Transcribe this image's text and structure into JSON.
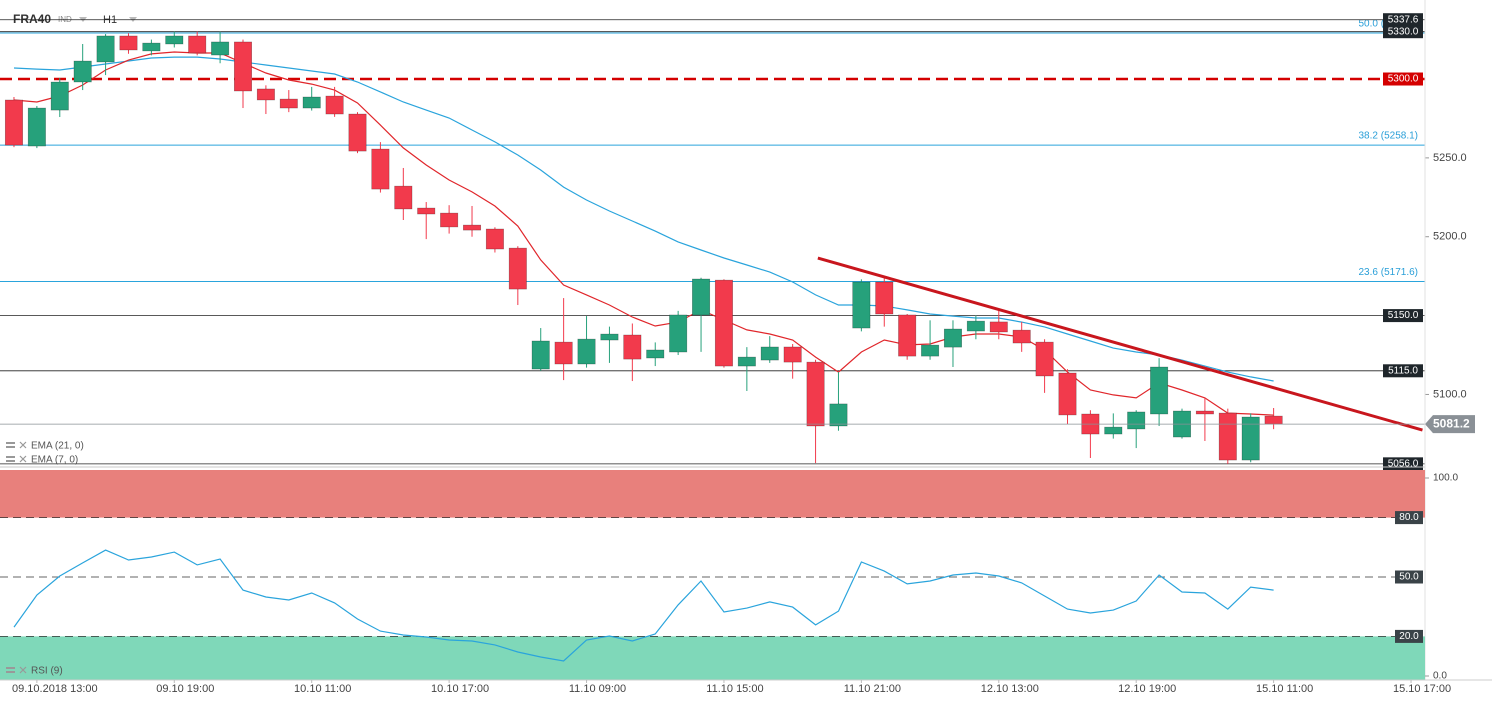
{
  "chart_data": {
    "type": "candlestick",
    "title": "FRA40",
    "instrument_type": "IND",
    "timeframe": "H1",
    "x": [
      0,
      1,
      2,
      3,
      4,
      5,
      6,
      7,
      8,
      9,
      10,
      11,
      12,
      13,
      14,
      15,
      16,
      17,
      18,
      19,
      20,
      21,
      22,
      23,
      24,
      25,
      26,
      27,
      28,
      29,
      30,
      31,
      32,
      33,
      34,
      35,
      36,
      37,
      38,
      39,
      40,
      41,
      42,
      43,
      44,
      45,
      46,
      47,
      48,
      49,
      50,
      51,
      52,
      53,
      54,
      55
    ],
    "open": [
      5286.7,
      5257.5,
      5280.3,
      5298.1,
      5310.8,
      5327.3,
      5317.8,
      5322.2,
      5327.3,
      5315.2,
      5323.5,
      5293.7,
      5287.3,
      5281.6,
      5289.2,
      5277.8,
      5255.6,
      5232.1,
      5218.2,
      5215.0,
      5207.4,
      5204.9,
      5192.8,
      5116.1,
      5133.2,
      5119.3,
      5134.5,
      5137.7,
      5123.1,
      5126.9,
      5150.4,
      5172.5,
      5118.0,
      5121.8,
      5130.1,
      5120.5,
      5080.0,
      5142.1,
      5171.3,
      5150.4,
      5124.3,
      5130.0,
      5140.2,
      5146.0,
      5140.8,
      5133.2,
      5113.6,
      5087.6,
      5074.9,
      5078.1,
      5087.6,
      5073.0,
      5089.5,
      5088.2,
      5058.4,
      5086.3
    ],
    "high": [
      5288.6,
      5282.9,
      5300.6,
      5322.2,
      5328.5,
      5329.0,
      5325.0,
      5330.0,
      5330.0,
      5330.0,
      5325.0,
      5296.0,
      5293.0,
      5295.0,
      5295.0,
      5279.0,
      5260.0,
      5243.6,
      5222.0,
      5220.0,
      5219.5,
      5206.0,
      5194.0,
      5142.1,
      5161.1,
      5149.7,
      5143.0,
      5145.0,
      5133.0,
      5153.0,
      5174.0,
      5173.0,
      5130.0,
      5137.0,
      5132.0,
      5122.0,
      5114.2,
      5173.0,
      5174.0,
      5151.0,
      5147.0,
      5147.0,
      5150.0,
      5153.0,
      5146.0,
      5135.0,
      5116.0,
      5090.0,
      5088.0,
      5090.0,
      5123.0,
      5091.0,
      5097.7,
      5091.0,
      5088.0,
      5091.4
    ],
    "low": [
      5256.8,
      5256.2,
      5275.9,
      5293.0,
      5302.5,
      5316.0,
      5315.0,
      5320.0,
      5315.0,
      5310.0,
      5281.6,
      5277.8,
      5279.0,
      5280.0,
      5276.0,
      5253.0,
      5228.0,
      5210.6,
      5198.5,
      5202.0,
      5200.0,
      5190.0,
      5156.7,
      5115.0,
      5109.1,
      5117.0,
      5120.0,
      5108.5,
      5118.0,
      5125.0,
      5127.0,
      5117.0,
      5102.2,
      5120.0,
      5110.0,
      5056.5,
      5077.0,
      5140.0,
      5143.0,
      5122.0,
      5122.0,
      5117.4,
      5135.0,
      5135.0,
      5127.0,
      5101.0,
      5081.0,
      5059.7,
      5072.0,
      5066.0,
      5080.0,
      5072.0,
      5070.5,
      5056.0,
      5057.0,
      5078.0
    ],
    "close": [
      5258.1,
      5281.6,
      5298.1,
      5311.4,
      5327.3,
      5318.4,
      5322.8,
      5327.3,
      5316.5,
      5323.5,
      5292.4,
      5286.7,
      5281.6,
      5288.6,
      5277.8,
      5254.3,
      5230.2,
      5217.6,
      5214.4,
      5206.2,
      5204.2,
      5192.2,
      5166.8,
      5133.9,
      5119.3,
      5135.1,
      5138.3,
      5122.4,
      5128.2,
      5150.4,
      5173.2,
      5118.0,
      5123.7,
      5130.1,
      5120.5,
      5080.0,
      5094.0,
      5171.3,
      5151.0,
      5124.3,
      5131.3,
      5141.5,
      5146.5,
      5139.6,
      5132.6,
      5111.7,
      5087.0,
      5074.9,
      5079.3,
      5088.9,
      5117.4,
      5089.5,
      5087.6,
      5058.4,
      5085.7,
      5081.2
    ],
    "up_color": "#26a17b",
    "down_color": "#f23a4c",
    "series": [
      {
        "name": "EMA (21, 0)",
        "color": "#2aa4dc",
        "values": [
          5307.0,
          5306.3,
          5305.7,
          5307.6,
          5309.5,
          5311.4,
          5313.3,
          5313.9,
          5313.9,
          5312.7,
          5310.8,
          5308.9,
          5307.0,
          5305.1,
          5303.2,
          5298.1,
          5291.8,
          5285.4,
          5280.3,
          5275.3,
          5267.7,
          5260.1,
          5251.8,
          5242.3,
          5231.5,
          5223.3,
          5216.3,
          5210.0,
          5203.6,
          5196.7,
          5191.6,
          5186.5,
          5182.1,
          5177.6,
          5171.3,
          5163.1,
          5156.7,
          5156.7,
          5156.1,
          5153.6,
          5151.0,
          5149.7,
          5148.5,
          5148.5,
          5145.9,
          5142.8,
          5138.3,
          5133.9,
          5129.4,
          5126.9,
          5125.0,
          5121.8,
          5118.0,
          5114.2,
          5111.1,
          5108.5
        ]
      },
      {
        "name": "EMA (7, 0)",
        "color": "#e0262b",
        "values": [
          5286.7,
          5285.4,
          5289.2,
          5296.2,
          5305.7,
          5312.0,
          5315.9,
          5317.1,
          5316.5,
          5316.5,
          5310.1,
          5303.8,
          5299.4,
          5296.8,
          5293.0,
          5284.8,
          5270.8,
          5256.3,
          5245.5,
          5236.0,
          5228.4,
          5219.5,
          5206.8,
          5185.3,
          5169.4,
          5163.1,
          5156.7,
          5149.1,
          5143.4,
          5145.9,
          5153.6,
          5147.2,
          5140.9,
          5138.3,
          5134.5,
          5123.7,
          5114.2,
          5126.9,
          5134.5,
          5131.4,
          5132.0,
          5136.4,
          5138.3,
          5138.3,
          5136.4,
          5128.2,
          5114.2,
          5102.8,
          5099.7,
          5097.8,
          5107.3,
          5102.8,
          5097.8,
          5088.2,
          5087.6,
          5086.9
        ]
      }
    ],
    "levels": [
      {
        "value": 5337.6,
        "label": "5337.6",
        "color": "#222222",
        "dashed": false
      },
      {
        "value": 5330.0,
        "label": "5330.0",
        "color": "#222222",
        "dashed": false
      },
      {
        "value": 5300.0,
        "label": "5300.0",
        "color": "#d40000",
        "dashed": true
      },
      {
        "value": 5150.0,
        "label": "5150.0",
        "color": "#222222",
        "dashed": false
      },
      {
        "value": 5115.0,
        "label": "5115.0",
        "color": "#222222",
        "dashed": false
      },
      {
        "value": 5056.0,
        "label": "5056.0",
        "color": "#222222",
        "dashed": false
      }
    ],
    "fibonacci": [
      {
        "value": 5329.2,
        "label": "50.0 (5329.2)"
      },
      {
        "value": 5258.1,
        "label": "38.2 (5258.1)"
      },
      {
        "value": 5171.6,
        "label": "23.6 (5171.6)"
      }
    ],
    "fib_color": "#2aa4dc",
    "trendline": {
      "x": [
        35.1,
        61.5
      ],
      "y": [
        5186.5,
        5077.4
      ],
      "color": "#c8161d"
    },
    "last_price": {
      "value": 5081.2,
      "label": "5081.2",
      "color": "#8a9096"
    },
    "xlim": [
      -0.61,
      61.61
    ],
    "xticks": [
      {
        "value": 1,
        "label": "09.10.2018 13:00"
      },
      {
        "value": 7,
        "label": "09.10 19:00"
      },
      {
        "value": 13,
        "label": "10.10 11:00"
      },
      {
        "value": 19,
        "label": "10.10 17:00"
      },
      {
        "value": 25,
        "label": "11.10 09:00"
      },
      {
        "value": 31,
        "label": "11.10 15:00"
      },
      {
        "value": 37,
        "label": "11.10 21:00"
      },
      {
        "value": 43,
        "label": "12.10 13:00"
      },
      {
        "value": 49,
        "label": "12.10 19:00"
      },
      {
        "value": 55,
        "label": "15.10 11:00"
      },
      {
        "value": 61,
        "label": "15.10 17:00"
      }
    ],
    "ylim": [
      5054.0,
      5350.1
    ],
    "yticks": [
      {
        "value": 5250,
        "label": "5250.0"
      },
      {
        "value": 5200,
        "label": "5200.0"
      },
      {
        "value": 5100,
        "label": "5100.0"
      }
    ],
    "indicator": {
      "name": "RSI (9)",
      "color": "#2aa4dc",
      "values": [
        24.7,
        40.9,
        50.5,
        57.1,
        63.6,
        58.6,
        60.1,
        62.6,
        56.1,
        59.1,
        43.4,
        39.9,
        38.4,
        41.9,
        36.9,
        28.8,
        22.7,
        20.7,
        19.7,
        18.2,
        17.7,
        15.7,
        12.1,
        9.6,
        7.6,
        18.2,
        20.2,
        17.7,
        21.2,
        35.9,
        48.0,
        32.3,
        34.3,
        37.4,
        34.8,
        25.8,
        32.8,
        57.6,
        53.0,
        46.5,
        48.0,
        51.0,
        52.0,
        50.5,
        47.0,
        40.4,
        33.8,
        31.8,
        33.3,
        37.9,
        51.0,
        42.4,
        41.9,
        33.8,
        44.9,
        43.4
      ],
      "ylim": [
        0,
        100
      ],
      "yticks": [
        {
          "value": 100,
          "label": "100.0"
        },
        {
          "value": 80,
          "label": "80.0"
        },
        {
          "value": 50,
          "label": "50.0"
        },
        {
          "value": 20,
          "label": "20.0"
        },
        {
          "value": 0,
          "label": "0.0"
        }
      ],
      "overbought_color": "#e8807c",
      "oversold_color": "#7fd8b9"
    }
  }
}
